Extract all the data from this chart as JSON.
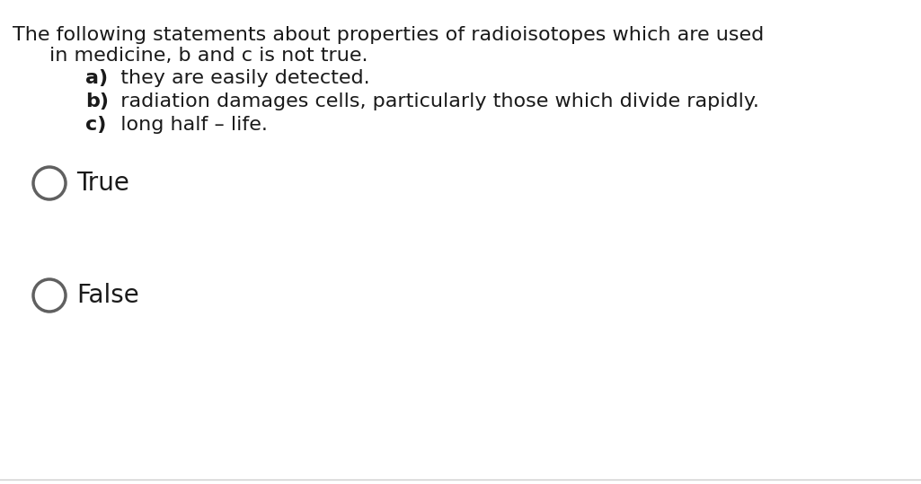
{
  "background_color": "#ffffff",
  "line1": "The following statements about properties of radioisotopes which are used",
  "line2": "in medicine, b and c is not true.",
  "item_a_label": "a)",
  "item_a_text": "  they are easily detected.",
  "item_b_label": "b)",
  "item_b_text": "  radiation damages cells, particularly those which divide rapidly.",
  "item_c_label": "c)",
  "item_c_text": "  long half – life.",
  "option_true": "True",
  "option_false": "False",
  "text_color": "#1a1a1a",
  "circle_edge_color": "#606060",
  "font_size_main": 16,
  "font_size_options": 20,
  "circle_lw": 2.5,
  "bottom_line_color": "#cccccc",
  "fig_width": 10.25,
  "fig_height": 5.39,
  "dpi": 100
}
